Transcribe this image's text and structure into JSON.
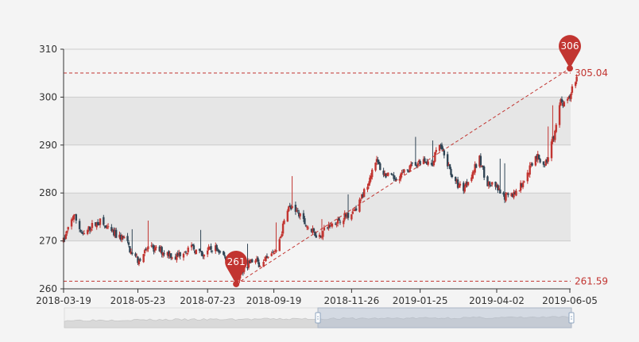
{
  "chart_data": {
    "type": "candlestick",
    "title": "",
    "xlabel": "",
    "ylabel": "",
    "x_tick_labels": [
      "2018-03-19",
      "2018-05-23",
      "2018-07-23",
      "2018-09-19",
      "2018-11-26",
      "2019-01-25",
      "2019-04-02",
      "2019-06-05"
    ],
    "y_ticks": [
      260,
      270,
      280,
      290,
      300,
      310
    ],
    "ylim": [
      260,
      310
    ],
    "grid": "horizontal-bands",
    "colors": {
      "up": "#c23531",
      "down": "#314656",
      "band": "#e6e6e6",
      "plot_bg": "#f4f4f4"
    },
    "mark_points": [
      {
        "name": "max",
        "label": "306",
        "date": "2019-06-05",
        "value": 306
      },
      {
        "name": "min",
        "label": "261",
        "date": "2018-08-17",
        "value": 261
      }
    ],
    "mark_lines": [
      {
        "name": "upper",
        "label": "305.04",
        "value": 305.04
      },
      {
        "name": "lower",
        "label": "261.59",
        "value": 261.59
      }
    ],
    "trend_line": {
      "from": {
        "date": "2018-08-17",
        "value": 261
      },
      "to": {
        "date": "2019-06-05",
        "value": 306
      }
    },
    "data_zoom": {
      "start_fraction": 0.5,
      "end_fraction": 1.0
    },
    "path_anchors": [
      [
        "2018-03-19",
        270
      ],
      [
        "2018-03-24",
        273
      ],
      [
        "2018-03-28",
        275.5
      ],
      [
        "2018-04-05",
        271
      ],
      [
        "2018-04-12",
        273
      ],
      [
        "2018-04-20",
        274
      ],
      [
        "2018-04-28",
        272
      ],
      [
        "2018-05-05",
        271
      ],
      [
        "2018-05-12",
        270.5
      ],
      [
        "2018-05-18",
        267
      ],
      [
        "2018-05-23",
        266
      ],
      [
        "2018-06-01",
        268.5
      ],
      [
        "2018-06-10",
        268
      ],
      [
        "2018-06-18",
        267.5
      ],
      [
        "2018-06-25",
        266.5
      ],
      [
        "2018-07-02",
        268
      ],
      [
        "2018-07-10",
        268.5
      ],
      [
        "2018-07-18",
        267
      ],
      [
        "2018-07-23",
        268
      ],
      [
        "2018-07-30",
        268.5
      ],
      [
        "2018-08-06",
        267
      ],
      [
        "2018-08-13",
        264
      ],
      [
        "2018-08-17",
        262
      ],
      [
        "2018-08-24",
        264.5
      ],
      [
        "2018-09-01",
        266
      ],
      [
        "2018-09-08",
        265
      ],
      [
        "2018-09-15",
        266.5
      ],
      [
        "2018-09-20",
        268
      ],
      [
        "2018-09-25",
        271
      ],
      [
        "2018-10-01",
        277
      ],
      [
        "2018-10-08",
        276.5
      ],
      [
        "2018-10-15",
        274
      ],
      [
        "2018-10-22",
        272
      ],
      [
        "2018-10-29",
        271
      ],
      [
        "2018-11-05",
        273
      ],
      [
        "2018-11-12",
        274
      ],
      [
        "2018-11-19",
        275
      ],
      [
        "2018-11-26",
        276
      ],
      [
        "2018-12-03",
        278
      ],
      [
        "2018-12-10",
        282
      ],
      [
        "2018-12-17",
        287
      ],
      [
        "2018-12-24",
        284
      ],
      [
        "2019-01-01",
        283
      ],
      [
        "2019-01-10",
        284
      ],
      [
        "2019-01-20",
        286
      ],
      [
        "2019-01-28",
        287
      ],
      [
        "2019-02-04",
        286
      ],
      [
        "2019-02-11",
        290
      ],
      [
        "2019-02-18",
        286
      ],
      [
        "2019-02-25",
        282
      ],
      [
        "2019-03-04",
        281
      ],
      [
        "2019-03-11",
        284
      ],
      [
        "2019-03-18",
        287
      ],
      [
        "2019-03-22",
        284
      ],
      [
        "2019-03-25",
        282
      ],
      [
        "2019-04-02",
        281
      ],
      [
        "2019-04-08",
        279
      ],
      [
        "2019-04-15",
        279.5
      ],
      [
        "2019-04-22",
        281
      ],
      [
        "2019-04-29",
        284
      ],
      [
        "2019-05-06",
        288
      ],
      [
        "2019-05-13",
        286
      ],
      [
        "2019-05-17",
        287
      ],
      [
        "2019-05-23",
        293
      ],
      [
        "2019-05-28",
        299
      ],
      [
        "2019-06-01",
        298
      ],
      [
        "2019-06-05",
        300
      ],
      [
        "2019-06-08",
        303
      ],
      [
        "2019-06-11",
        304
      ]
    ]
  }
}
